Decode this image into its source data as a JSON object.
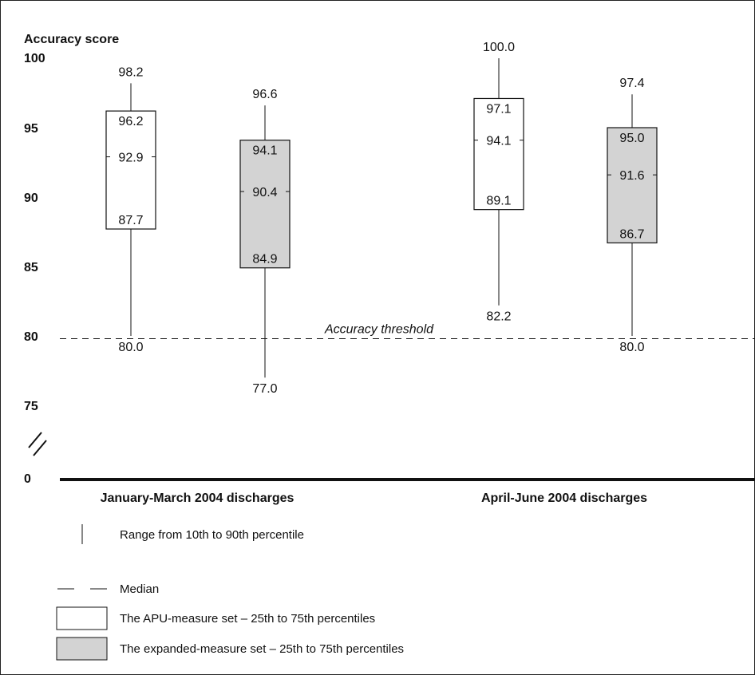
{
  "chart_data": {
    "type": "boxplot",
    "ylabel": "Accuracy score",
    "y_ticks": [
      "100",
      "95",
      "90",
      "85",
      "80",
      "75",
      "0"
    ],
    "ylim": [
      75,
      100
    ],
    "axis_break": true,
    "threshold": {
      "value": 79.8,
      "label": "Accuracy threshold"
    },
    "groups": [
      {
        "label": "January-March 2004 discharges",
        "boxes": [
          {
            "set": "apu",
            "p10": 80.0,
            "p25": 87.7,
            "median": 92.9,
            "p75": 96.2,
            "p90": 98.2
          },
          {
            "set": "expanded",
            "p10": 77.0,
            "p25": 84.9,
            "median": 90.4,
            "p75": 94.1,
            "p90": 96.6
          }
        ]
      },
      {
        "label": "April-June 2004 discharges",
        "boxes": [
          {
            "set": "apu",
            "p10": 82.2,
            "p25": 89.1,
            "median": 94.1,
            "p75": 97.1,
            "p90": 100.0
          },
          {
            "set": "expanded",
            "p10": 80.0,
            "p25": 86.7,
            "median": 91.6,
            "p75": 95.0,
            "p90": 97.4
          }
        ]
      }
    ],
    "legend": [
      {
        "key": "range",
        "label": "Range from 10th to 90th percentile"
      },
      {
        "key": "median",
        "label": "Median"
      },
      {
        "key": "apu",
        "label": "The APU-measure set – 25th to 75th percentiles"
      },
      {
        "key": "expanded",
        "label": "The expanded-measure set – 25th to 75th percentiles"
      }
    ],
    "colors": {
      "apu": "#ffffff",
      "expanded": "#d3d3d3",
      "line": "#111111"
    }
  }
}
